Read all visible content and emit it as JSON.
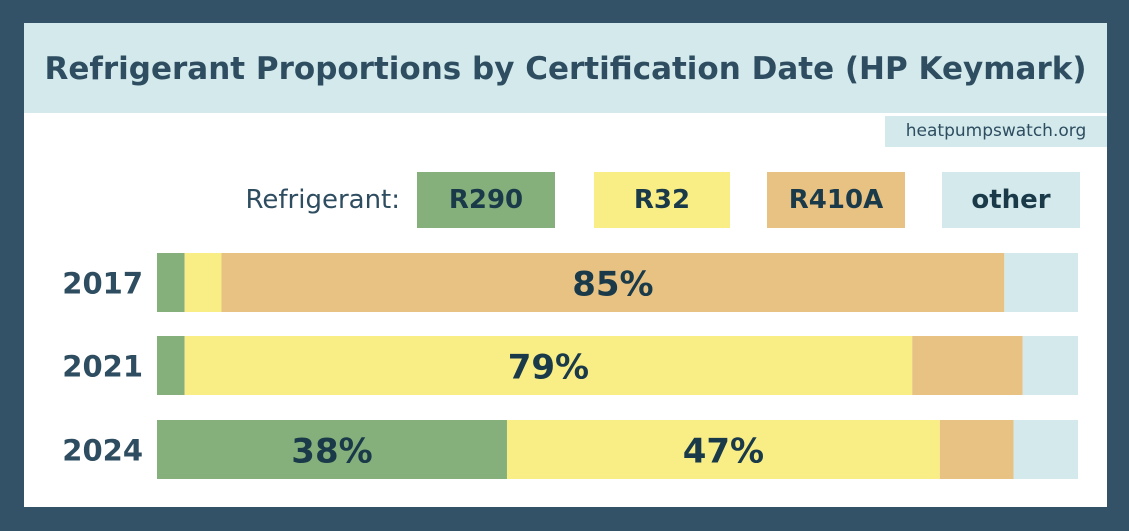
{
  "title": "Refrigerant Proportions by Certification Date (HP Keymark)",
  "source": "heatpumpswatch.org",
  "legend": {
    "label": "Refrigerant:",
    "items": [
      {
        "name": "R290",
        "color": "#86b07b"
      },
      {
        "name": "R32",
        "color": "#f9ee86"
      },
      {
        "name": "R410A",
        "color": "#e8c283"
      },
      {
        "name": "other",
        "color": "#d3e9ec"
      }
    ]
  },
  "chart_data": {
    "type": "bar",
    "orientation": "horizontal",
    "stacked": true,
    "normalized": true,
    "categories": [
      "2017",
      "2021",
      "2024"
    ],
    "series": [
      {
        "name": "R290",
        "color": "#86b07b",
        "values": [
          3,
          3,
          38
        ],
        "labels": [
          "",
          "",
          "38%"
        ]
      },
      {
        "name": "R32",
        "color": "#f9ee86",
        "values": [
          4,
          79,
          47
        ],
        "labels": [
          "",
          "79%",
          "47%"
        ]
      },
      {
        "name": "R410A",
        "color": "#e8c283",
        "values": [
          85,
          12,
          8
        ],
        "labels": [
          "85%",
          "",
          ""
        ]
      },
      {
        "name": "other",
        "color": "#d3e9ec",
        "values": [
          8,
          6,
          7
        ],
        "labels": [
          "",
          "",
          ""
        ]
      }
    ],
    "xlim": [
      0,
      100
    ],
    "grid": false,
    "legend_position": "top"
  }
}
